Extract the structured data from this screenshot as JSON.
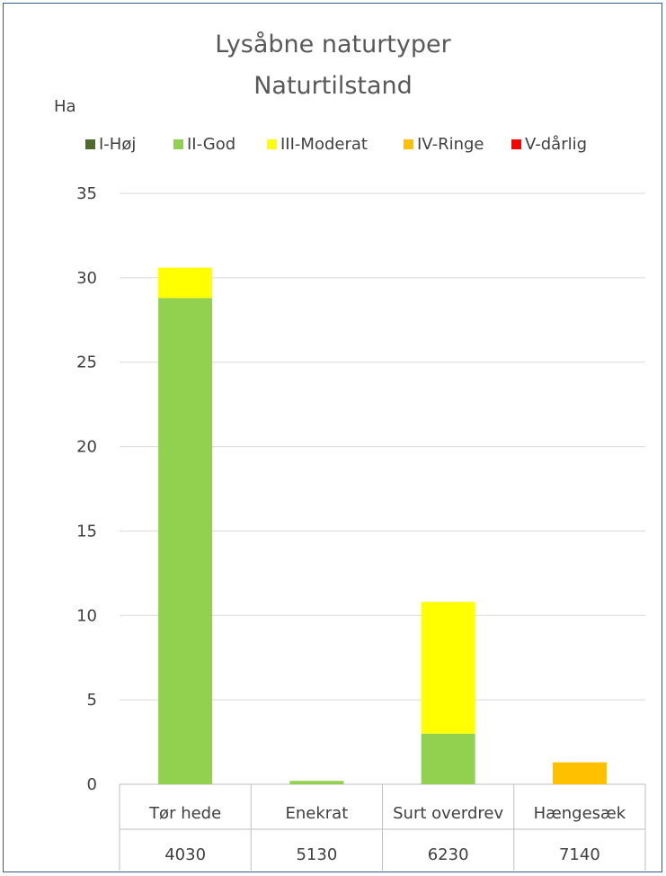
{
  "chart_data": {
    "type": "bar",
    "stacked": true,
    "title": "Lysåbne naturtyper",
    "subtitle": "Naturtilstand",
    "ylabel": "Ha",
    "ylim": [
      0,
      35
    ],
    "yticks": [
      0,
      5,
      10,
      15,
      20,
      25,
      30,
      35
    ],
    "grid": true,
    "legend_position": "top",
    "categories": [
      "Tør hede",
      "Enekrat",
      "Surt overdrev",
      "Hængesæk"
    ],
    "category_codes": [
      "4030",
      "5130",
      "6230",
      "7140"
    ],
    "series": [
      {
        "name": "I-Høj",
        "color": "#4e6b2a",
        "values": [
          0,
          0,
          0,
          0
        ]
      },
      {
        "name": "II-God",
        "color": "#92d050",
        "values": [
          28.8,
          0.2,
          3.0,
          0
        ]
      },
      {
        "name": "III-Moderat",
        "color": "#ffff00",
        "values": [
          1.8,
          0,
          7.8,
          0
        ]
      },
      {
        "name": "IV-Ringe",
        "color": "#ffc000",
        "values": [
          0,
          0,
          0,
          1.3
        ]
      },
      {
        "name": "V-dårlig",
        "color": "#ff0000",
        "values": [
          0,
          0,
          0,
          0
        ]
      }
    ]
  }
}
